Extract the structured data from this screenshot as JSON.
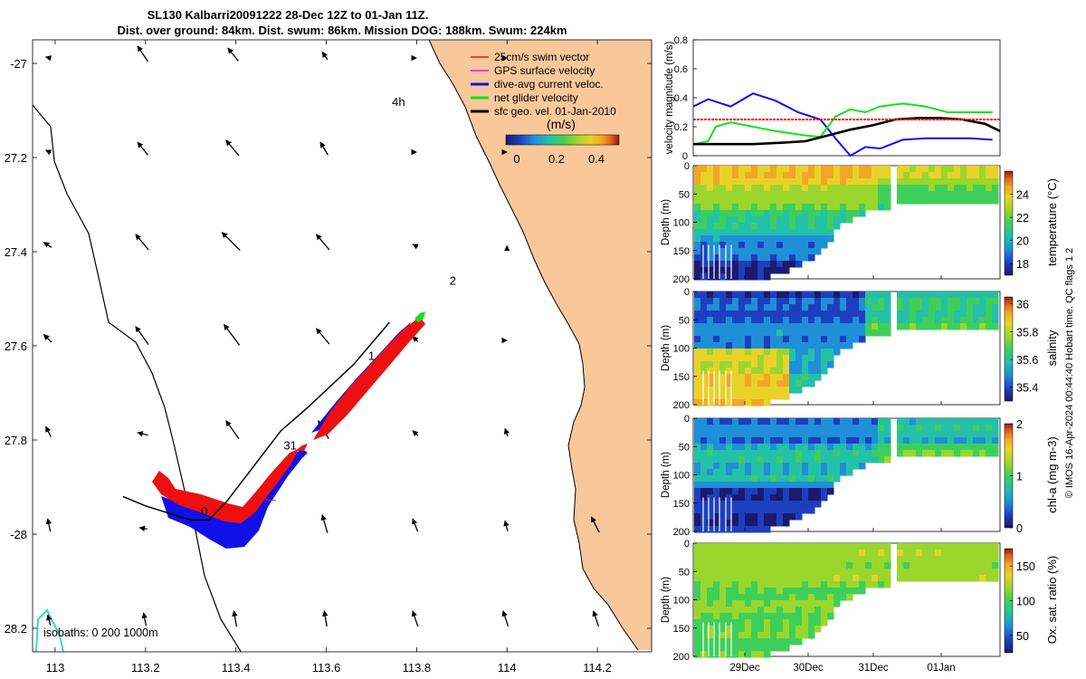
{
  "header": {
    "line1": "SL130 Kalbarri20091222 28-Dec 12Z to 01-Jan 11Z.",
    "line2": "Dist. over ground: 84km. Dist. swum: 86km. Mission DOG: 188km. Swum: 224km"
  },
  "credit": "© IMOS 16-Apr-2024 00:44:40 Hobart time. QC flags 1  2",
  "colors": {
    "land": "#f9c89a",
    "blue": "#1010e8",
    "red": "#ee1010",
    "green": "#18e018",
    "black": "#000000",
    "cyan": "#30d8e8"
  },
  "chart_data": [
    {
      "type": "scatter",
      "name": "map",
      "xlim": [
        112.95,
        114.32
      ],
      "ylim": [
        -28.25,
        -26.95
      ],
      "xticks": [
        113,
        113.2,
        113.4,
        113.6,
        113.8,
        114,
        114.2
      ],
      "xtick_labels": [
        "113",
        "113.2",
        "113.4",
        "113.6",
        "113.8",
        "114",
        "114.2"
      ],
      "yticks": [
        -27,
        -27.2,
        -27.4,
        -27.6,
        -27.8,
        -28,
        -28.2
      ],
      "ytick_labels": [
        "-27",
        "27.2",
        "27.4",
        "27.6",
        "27.8",
        "-28",
        "28.2"
      ],
      "legend": [
        {
          "label": "25cm/s swim vector",
          "color": "#ee1010"
        },
        {
          "label": "GPS surface velocity",
          "color": "#ff00ff"
        },
        {
          "label": "dive-avg current veloc.",
          "color": "#1010e8"
        },
        {
          "label": "net glider velocity",
          "color": "#18e018"
        },
        {
          "label": "sfc geo. vel. 01-Jan-2010",
          "color": "#000000"
        }
      ],
      "colorbar": {
        "label": "(m/s)",
        "ticks": [
          "0",
          "0.2",
          "0.4"
        ]
      },
      "isobaths": "isobaths: 0   200  1000m",
      "day_labels": [
        {
          "text": "4h",
          "x": 113.76,
          "y": -27.09
        },
        {
          "text": "2",
          "x": 113.88,
          "y": -27.47
        },
        {
          "text": "1",
          "x": 113.7,
          "y": -27.63
        },
        {
          "text": "31",
          "x": 113.52,
          "y": -27.82
        },
        {
          "text": "0",
          "x": 113.33,
          "y": -27.96
        }
      ],
      "glider_track": {
        "lon": [
          113.74,
          113.66,
          113.56,
          113.5,
          113.46,
          113.42,
          113.38,
          113.34,
          113.3,
          113.2,
          113.15
        ],
        "lat": [
          -27.55,
          -27.64,
          -27.73,
          -27.78,
          -27.83,
          -27.88,
          -27.93,
          -27.97,
          -27.97,
          -27.94,
          -27.92
        ]
      },
      "sfc_geo_vectors": {
        "rows_lat": [
          -27.0,
          -27.2,
          -27.4,
          -27.6,
          -27.8,
          -28.0,
          -28.2
        ],
        "cols_lon": [
          112.98,
          113.2,
          113.4,
          113.6,
          113.8,
          114.0,
          114.2
        ],
        "u": [
          [
            -0.2,
            -0.4,
            -0.4,
            -0.2,
            0,
            0,
            null
          ],
          [
            -0.2,
            -0.4,
            -0.5,
            -0.3,
            0,
            0,
            null
          ],
          [
            -0.3,
            -0.5,
            -0.7,
            -0.5,
            -0.2,
            0,
            null
          ],
          [
            -0.3,
            -0.5,
            -0.6,
            -0.5,
            -0.2,
            0,
            null
          ],
          [
            -0.2,
            -0.4,
            -0.5,
            -0.4,
            -0.2,
            -0.1,
            null
          ],
          [
            -0.1,
            -0.3,
            -0.2,
            -0.2,
            -0.2,
            -0.1,
            -0.3
          ],
          [
            -0.1,
            -0.1,
            -0.1,
            -0.1,
            -0.2,
            -0.2,
            -0.2
          ]
        ],
        "v": [
          [
            0.05,
            0.6,
            0.5,
            0.3,
            0.0,
            0,
            null
          ],
          [
            0.1,
            0.5,
            0.6,
            0.5,
            0.0,
            0,
            null
          ],
          [
            0.2,
            0.6,
            0.7,
            0.6,
            0.1,
            0.03,
            null
          ],
          [
            0.3,
            0.7,
            0.8,
            0.6,
            0.2,
            0,
            null
          ],
          [
            0.4,
            0.1,
            0.7,
            0.7,
            0.2,
            0.3,
            null
          ],
          [
            0.5,
            0.05,
            0.6,
            0.7,
            0.5,
            0.4,
            0.6
          ],
          [
            0.4,
            0.5,
            0.6,
            0.6,
            0.6,
            0.6,
            0.6
          ]
        ]
      }
    },
    {
      "type": "line",
      "name": "velocity",
      "ylabel": "velocity magnitude (m/s)",
      "ylim": [
        0,
        0.8
      ],
      "yticks": [
        0,
        0.2,
        0.4,
        0.6,
        0.8
      ],
      "ytick_labels": [
        "0",
        "0.2",
        "0.4",
        "0.6",
        "0.8"
      ],
      "xlim": [
        28.4,
        32.5
      ],
      "series": [
        {
          "name": "dive-avg current veloc.",
          "color": "#1010e8",
          "x": [
            28.4,
            28.6,
            28.9,
            29.2,
            29.5,
            29.8,
            30.1,
            30.3,
            30.5,
            30.7,
            30.9,
            31.2,
            31.5,
            31.8,
            32.1,
            32.4
          ],
          "y": [
            0.34,
            0.39,
            0.34,
            0.43,
            0.38,
            0.3,
            0.25,
            0.12,
            0.0,
            0.06,
            0.05,
            0.11,
            0.12,
            0.12,
            0.12,
            0.11
          ]
        },
        {
          "name": "net glider velocity",
          "color": "#18e018",
          "x": [
            28.4,
            28.6,
            28.7,
            28.9,
            29.1,
            29.5,
            29.9,
            30.1,
            30.3,
            30.5,
            30.7,
            30.9,
            31.2,
            31.5,
            31.8,
            32.1,
            32.4
          ],
          "y": [
            0.08,
            0.1,
            0.2,
            0.23,
            0.21,
            0.17,
            0.14,
            0.13,
            0.27,
            0.32,
            0.3,
            0.34,
            0.36,
            0.34,
            0.3,
            0.3,
            0.3
          ]
        },
        {
          "name": "sfc geo. vel.",
          "color": "#000000",
          "x": [
            28.4,
            28.8,
            29.2,
            29.6,
            29.9,
            30.2,
            30.5,
            30.8,
            31.1,
            31.4,
            31.7,
            32.0,
            32.3,
            32.5
          ],
          "y": [
            0.08,
            0.08,
            0.08,
            0.09,
            0.1,
            0.14,
            0.18,
            0.21,
            0.25,
            0.26,
            0.26,
            0.25,
            0.22,
            0.17
          ]
        },
        {
          "name": "25cm/s swim",
          "color": "#ee1010",
          "x": [
            28.4,
            32.5
          ],
          "y": [
            0.25,
            0.25
          ]
        }
      ]
    },
    {
      "type": "heatmap",
      "name": "temperature",
      "ylabel": "Depth (m)",
      "cbar_label": "temperature (°C)",
      "clim": [
        17,
        26
      ],
      "cticks": [
        "18",
        "20",
        "22",
        "24"
      ],
      "palette": [
        "#1a1a6e",
        "#1d3fbf",
        "#1f8fd8",
        "#24c0a8",
        "#3ecf5a",
        "#9bd62c",
        "#e8d22a",
        "#f3a623",
        "#e0601c",
        "#8a1e12"
      ]
    },
    {
      "type": "heatmap",
      "name": "salinity",
      "ylabel": "Depth (m)",
      "cbar_label": "salinity",
      "clim": [
        35.3,
        36.05
      ],
      "cticks": [
        "35.4",
        "35.6",
        "35.8",
        "36"
      ],
      "palette": [
        "#1a1a6e",
        "#1d3fbf",
        "#1f8fd8",
        "#24c0a8",
        "#3ecf5a",
        "#9bd62c",
        "#e8d22a",
        "#f3a623",
        "#e0601c",
        "#8a1e12"
      ]
    },
    {
      "type": "heatmap",
      "name": "chla",
      "ylabel": "Depth (m)",
      "cbar_label": "chl-a (mg m-3)",
      "clim": [
        0,
        2
      ],
      "cticks": [
        "0",
        "1",
        "2"
      ],
      "palette": [
        "#1a1a6e",
        "#1d3fbf",
        "#1f8fd8",
        "#24c0a8",
        "#3ecf5a",
        "#9bd62c",
        "#e8d22a",
        "#f3a623",
        "#e0601c",
        "#8a1e12"
      ]
    },
    {
      "type": "heatmap",
      "name": "oxygen",
      "ylabel": "Depth (m)",
      "cbar_label": "Ox. sat. ratio (%)",
      "clim": [
        25,
        175
      ],
      "cticks": [
        "50",
        "100",
        "150"
      ],
      "palette": [
        "#1a1a6e",
        "#1d3fbf",
        "#1f8fd8",
        "#24c0a8",
        "#3ecf5a",
        "#9bd62c",
        "#e8d22a",
        "#f3a623",
        "#e0601c",
        "#8a1e12"
      ]
    },
    {
      "type": "table",
      "name": "time-axis",
      "depth_ticks": [
        "0",
        "50",
        "100",
        "150",
        "200"
      ],
      "time_ticks": [
        "29Dec",
        "30Dec",
        "31Dec",
        "01Jan"
      ]
    }
  ]
}
